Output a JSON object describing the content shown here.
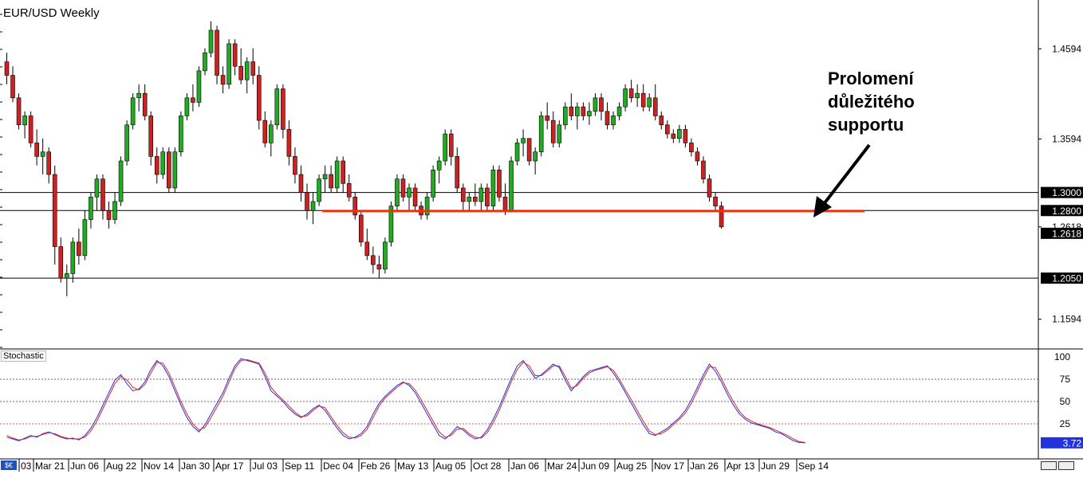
{
  "chart_data": [
    {
      "type": "candlestick",
      "title": "EUR/USD Weekly",
      "ylim": [
        1.13,
        1.51
      ],
      "y_ticks": [
        "1.4594",
        "1.3594",
        "1.2618",
        "1.1594"
      ],
      "grid": false,
      "levels": [
        {
          "label": "1.3000",
          "value": 1.3,
          "color": "#000000"
        },
        {
          "label": "1.2800",
          "value": 1.28,
          "color": "#000000"
        },
        {
          "label": "1.2050",
          "value": 1.205,
          "color": "#000000"
        }
      ],
      "current_price": {
        "label": "1.2618",
        "value": 1.2618
      },
      "support_line": {
        "value": 1.2795,
        "x_start_index": 55,
        "x_end_index": 135,
        "color": "#ff2a00"
      },
      "annotation": [
        "Prolomení",
        "důležitého",
        "supportu"
      ],
      "up_color": "#22aa22",
      "down_color": "#cc2222",
      "ohlc": [
        [
          1.445,
          1.455,
          1.42,
          1.43
        ],
        [
          1.43,
          1.44,
          1.4,
          1.405
        ],
        [
          1.405,
          1.41,
          1.37,
          1.375
        ],
        [
          1.375,
          1.39,
          1.36,
          1.385
        ],
        [
          1.385,
          1.39,
          1.35,
          1.355
        ],
        [
          1.355,
          1.37,
          1.33,
          1.34
        ],
        [
          1.34,
          1.36,
          1.32,
          1.345
        ],
        [
          1.345,
          1.35,
          1.31,
          1.32
        ],
        [
          1.32,
          1.33,
          1.22,
          1.24
        ],
        [
          1.24,
          1.25,
          1.2,
          1.205
        ],
        [
          1.205,
          1.22,
          1.185,
          1.21
        ],
        [
          1.21,
          1.25,
          1.2,
          1.245
        ],
        [
          1.245,
          1.26,
          1.22,
          1.23
        ],
        [
          1.23,
          1.28,
          1.225,
          1.27
        ],
        [
          1.27,
          1.3,
          1.26,
          1.295
        ],
        [
          1.295,
          1.32,
          1.28,
          1.315
        ],
        [
          1.315,
          1.32,
          1.27,
          1.28
        ],
        [
          1.28,
          1.29,
          1.26,
          1.27
        ],
        [
          1.27,
          1.3,
          1.265,
          1.29
        ],
        [
          1.29,
          1.34,
          1.285,
          1.335
        ],
        [
          1.335,
          1.38,
          1.33,
          1.375
        ],
        [
          1.375,
          1.41,
          1.37,
          1.405
        ],
        [
          1.405,
          1.42,
          1.39,
          1.41
        ],
        [
          1.41,
          1.42,
          1.38,
          1.385
        ],
        [
          1.385,
          1.39,
          1.33,
          1.34
        ],
        [
          1.34,
          1.35,
          1.31,
          1.32
        ],
        [
          1.32,
          1.35,
          1.315,
          1.345
        ],
        [
          1.345,
          1.35,
          1.3,
          1.305
        ],
        [
          1.305,
          1.35,
          1.3,
          1.345
        ],
        [
          1.345,
          1.39,
          1.34,
          1.385
        ],
        [
          1.385,
          1.41,
          1.38,
          1.405
        ],
        [
          1.405,
          1.42,
          1.39,
          1.4
        ],
        [
          1.4,
          1.44,
          1.395,
          1.435
        ],
        [
          1.435,
          1.46,
          1.43,
          1.455
        ],
        [
          1.455,
          1.49,
          1.45,
          1.48
        ],
        [
          1.48,
          1.485,
          1.42,
          1.43
        ],
        [
          1.43,
          1.44,
          1.41,
          1.42
        ],
        [
          1.42,
          1.47,
          1.415,
          1.465
        ],
        [
          1.465,
          1.47,
          1.43,
          1.44
        ],
        [
          1.44,
          1.46,
          1.42,
          1.425
        ],
        [
          1.425,
          1.45,
          1.41,
          1.445
        ],
        [
          1.445,
          1.46,
          1.42,
          1.43
        ],
        [
          1.43,
          1.44,
          1.37,
          1.38
        ],
        [
          1.38,
          1.39,
          1.35,
          1.355
        ],
        [
          1.355,
          1.38,
          1.34,
          1.375
        ],
        [
          1.375,
          1.42,
          1.37,
          1.415
        ],
        [
          1.415,
          1.42,
          1.36,
          1.37
        ],
        [
          1.37,
          1.38,
          1.33,
          1.34
        ],
        [
          1.34,
          1.35,
          1.31,
          1.32
        ],
        [
          1.32,
          1.33,
          1.29,
          1.3
        ],
        [
          1.3,
          1.31,
          1.27,
          1.28
        ],
        [
          1.28,
          1.3,
          1.265,
          1.29
        ],
        [
          1.29,
          1.32,
          1.285,
          1.315
        ],
        [
          1.315,
          1.33,
          1.3,
          1.32
        ],
        [
          1.32,
          1.33,
          1.3,
          1.305
        ],
        [
          1.305,
          1.34,
          1.3,
          1.335
        ],
        [
          1.335,
          1.34,
          1.3,
          1.31
        ],
        [
          1.31,
          1.32,
          1.29,
          1.295
        ],
        [
          1.295,
          1.3,
          1.27,
          1.275
        ],
        [
          1.275,
          1.28,
          1.24,
          1.245
        ],
        [
          1.245,
          1.26,
          1.225,
          1.23
        ],
        [
          1.23,
          1.24,
          1.21,
          1.22
        ],
        [
          1.22,
          1.23,
          1.205,
          1.215
        ],
        [
          1.215,
          1.25,
          1.21,
          1.245
        ],
        [
          1.245,
          1.29,
          1.24,
          1.285
        ],
        [
          1.285,
          1.32,
          1.28,
          1.315
        ],
        [
          1.315,
          1.32,
          1.29,
          1.295
        ],
        [
          1.295,
          1.31,
          1.28,
          1.305
        ],
        [
          1.305,
          1.31,
          1.28,
          1.285
        ],
        [
          1.285,
          1.29,
          1.27,
          1.275
        ],
        [
          1.275,
          1.3,
          1.27,
          1.295
        ],
        [
          1.295,
          1.33,
          1.29,
          1.325
        ],
        [
          1.325,
          1.34,
          1.31,
          1.335
        ],
        [
          1.335,
          1.37,
          1.33,
          1.365
        ],
        [
          1.365,
          1.37,
          1.33,
          1.34
        ],
        [
          1.34,
          1.35,
          1.3,
          1.305
        ],
        [
          1.305,
          1.31,
          1.28,
          1.29
        ],
        [
          1.29,
          1.3,
          1.28,
          1.295
        ],
        [
          1.295,
          1.31,
          1.285,
          1.29
        ],
        [
          1.29,
          1.31,
          1.28,
          1.305
        ],
        [
          1.305,
          1.31,
          1.28,
          1.285
        ],
        [
          1.285,
          1.33,
          1.28,
          1.325
        ],
        [
          1.325,
          1.33,
          1.29,
          1.295
        ],
        [
          1.295,
          1.31,
          1.275,
          1.28
        ],
        [
          1.28,
          1.34,
          1.278,
          1.335
        ],
        [
          1.335,
          1.36,
          1.33,
          1.355
        ],
        [
          1.355,
          1.37,
          1.34,
          1.36
        ],
        [
          1.36,
          1.36,
          1.33,
          1.335
        ],
        [
          1.335,
          1.35,
          1.32,
          1.345
        ],
        [
          1.345,
          1.39,
          1.34,
          1.385
        ],
        [
          1.385,
          1.4,
          1.37,
          1.38
        ],
        [
          1.38,
          1.39,
          1.35,
          1.355
        ],
        [
          1.355,
          1.38,
          1.35,
          1.375
        ],
        [
          1.375,
          1.4,
          1.37,
          1.395
        ],
        [
          1.395,
          1.41,
          1.38,
          1.385
        ],
        [
          1.385,
          1.4,
          1.37,
          1.395
        ],
        [
          1.395,
          1.4,
          1.38,
          1.385
        ],
        [
          1.385,
          1.4,
          1.375,
          1.39
        ],
        [
          1.39,
          1.41,
          1.385,
          1.405
        ],
        [
          1.405,
          1.41,
          1.38,
          1.39
        ],
        [
          1.39,
          1.4,
          1.37,
          1.375
        ],
        [
          1.375,
          1.39,
          1.37,
          1.385
        ],
        [
          1.385,
          1.4,
          1.38,
          1.395
        ],
        [
          1.395,
          1.42,
          1.39,
          1.415
        ],
        [
          1.415,
          1.425,
          1.4,
          1.405
        ],
        [
          1.405,
          1.42,
          1.395,
          1.41
        ],
        [
          1.41,
          1.42,
          1.39,
          1.395
        ],
        [
          1.395,
          1.41,
          1.39,
          1.405
        ],
        [
          1.405,
          1.42,
          1.38,
          1.385
        ],
        [
          1.385,
          1.39,
          1.37,
          1.375
        ],
        [
          1.375,
          1.38,
          1.36,
          1.365
        ],
        [
          1.365,
          1.37,
          1.355,
          1.36
        ],
        [
          1.36,
          1.375,
          1.355,
          1.37
        ],
        [
          1.37,
          1.375,
          1.35,
          1.355
        ],
        [
          1.355,
          1.36,
          1.34,
          1.345
        ],
        [
          1.345,
          1.35,
          1.33,
          1.335
        ],
        [
          1.335,
          1.34,
          1.31,
          1.315
        ],
        [
          1.315,
          1.32,
          1.29,
          1.295
        ],
        [
          1.295,
          1.3,
          1.28,
          1.285
        ],
        [
          1.285,
          1.29,
          1.26,
          1.2618
        ]
      ]
    },
    {
      "type": "line",
      "title": "Stochastic",
      "ylim": [
        0,
        100
      ],
      "y_ticks": [
        "100",
        "75",
        "50",
        "25"
      ],
      "levels": [
        75,
        50,
        25
      ],
      "current_value": {
        "label": "3.72",
        "value": 3.72
      },
      "series": [
        {
          "color": "#2233dd",
          "values": [
            10,
            8,
            6,
            9,
            12,
            10,
            14,
            16,
            13,
            10,
            8,
            9,
            7,
            12,
            20,
            32,
            46,
            60,
            74,
            80,
            70,
            62,
            64,
            72,
            86,
            96,
            90,
            78,
            62,
            46,
            32,
            22,
            16,
            24,
            36,
            48,
            60,
            76,
            90,
            98,
            96,
            94,
            92,
            78,
            62,
            56,
            50,
            42,
            36,
            32,
            36,
            42,
            46,
            40,
            30,
            20,
            12,
            8,
            10,
            14,
            22,
            36,
            48,
            56,
            62,
            68,
            72,
            68,
            60,
            48,
            36,
            24,
            12,
            8,
            14,
            22,
            18,
            12,
            8,
            10,
            18,
            30,
            44,
            60,
            76,
            90,
            96,
            86,
            76,
            80,
            86,
            92,
            88,
            74,
            62,
            70,
            78,
            84,
            86,
            88,
            90,
            82,
            72,
            60,
            48,
            36,
            24,
            14,
            12,
            16,
            20,
            26,
            32,
            40,
            52,
            66,
            80,
            92,
            84,
            72,
            58,
            46,
            36,
            30,
            26,
            24,
            22,
            20,
            16,
            14,
            10,
            6,
            4,
            3.72
          ]
        },
        {
          "color": "#dd2222",
          "values": [
            12,
            9,
            7,
            8,
            11,
            11,
            13,
            15,
            14,
            11,
            9,
            8,
            8,
            10,
            17,
            28,
            42,
            56,
            70,
            78,
            74,
            66,
            63,
            69,
            82,
            94,
            93,
            82,
            66,
            50,
            36,
            25,
            18,
            21,
            32,
            44,
            56,
            72,
            87,
            96,
            97,
            95,
            93,
            82,
            66,
            58,
            52,
            45,
            38,
            33,
            34,
            40,
            45,
            43,
            33,
            23,
            15,
            10,
            9,
            12,
            19,
            32,
            45,
            54,
            60,
            66,
            71,
            70,
            63,
            52,
            40,
            28,
            16,
            10,
            12,
            19,
            20,
            14,
            10,
            9,
            15,
            26,
            40,
            56,
            72,
            86,
            94,
            90,
            79,
            79,
            84,
            90,
            90,
            78,
            65,
            68,
            76,
            82,
            85,
            87,
            89,
            85,
            75,
            63,
            52,
            40,
            28,
            17,
            13,
            14,
            18,
            24,
            30,
            37,
            48,
            62,
            76,
            89,
            88,
            76,
            62,
            50,
            39,
            32,
            28,
            25,
            23,
            21,
            18,
            15,
            12,
            8,
            5,
            4
          ]
        }
      ]
    }
  ],
  "x_tick_labels": [
    "03",
    "Mar 21",
    "Jun 06",
    "Aug 22",
    "Nov 14",
    "Jan 30",
    "Apr 17",
    "Jul 03",
    "Sep 11",
    "Dec 04",
    "Feb 26",
    "May 13",
    "Aug 05",
    "Oct 28",
    "Jan 06",
    "Mar 24",
    "Jun 09",
    "Aug 25",
    "Nov 17",
    "Jan 26",
    "Apr 13",
    "Jun 29",
    "Sep 14"
  ],
  "corner_icon": "currency-icon"
}
